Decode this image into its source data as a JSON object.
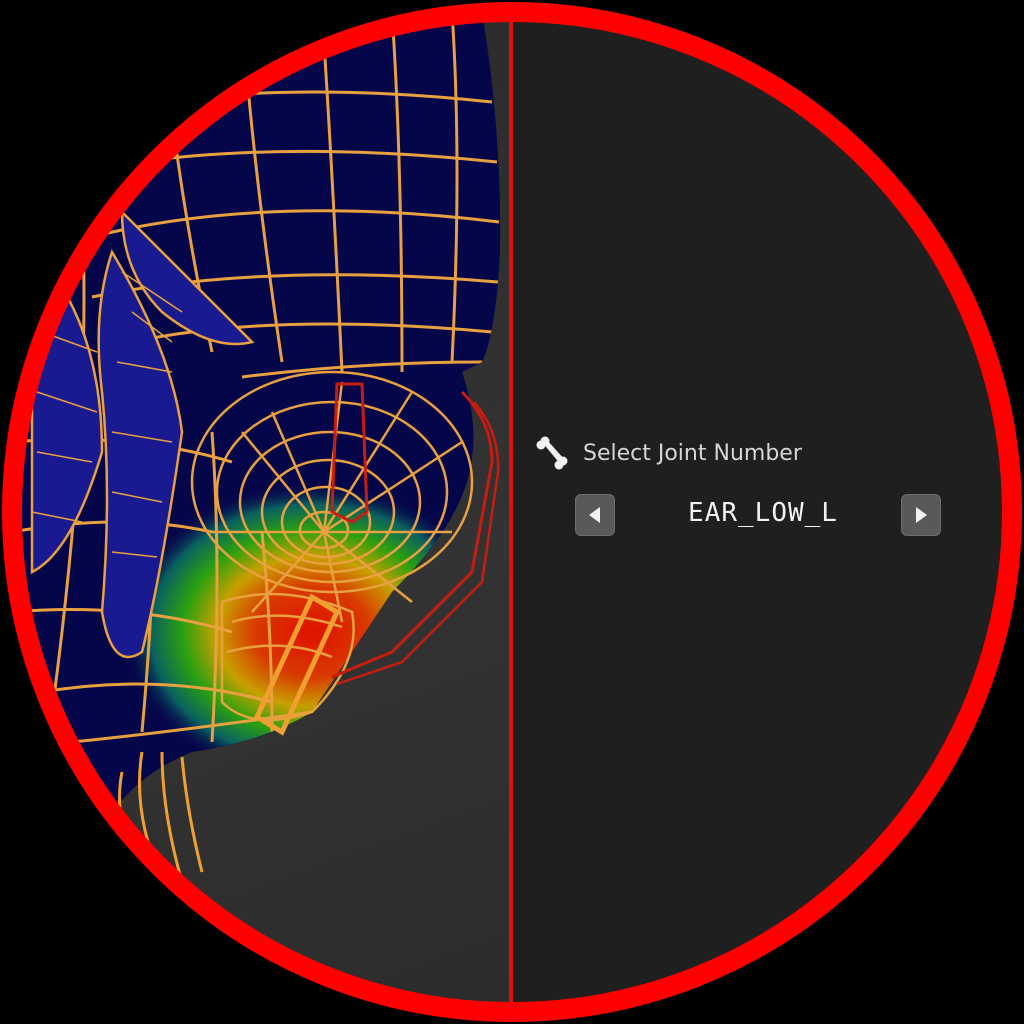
{
  "panel": {
    "title": "Select Joint Number",
    "icon": "bone-icon",
    "selected_joint": "EAR_LOW_L",
    "prev_icon": "triangle-left-icon",
    "next_icon": "triangle-right-icon"
  },
  "colors": {
    "ring": "#ff0000",
    "divider": "#e11010",
    "panel_bg": "#1f1f1f",
    "mesh_wire": "#e8a040",
    "mesh_fill": "#05054a",
    "bone_outline": "#c81c10"
  }
}
